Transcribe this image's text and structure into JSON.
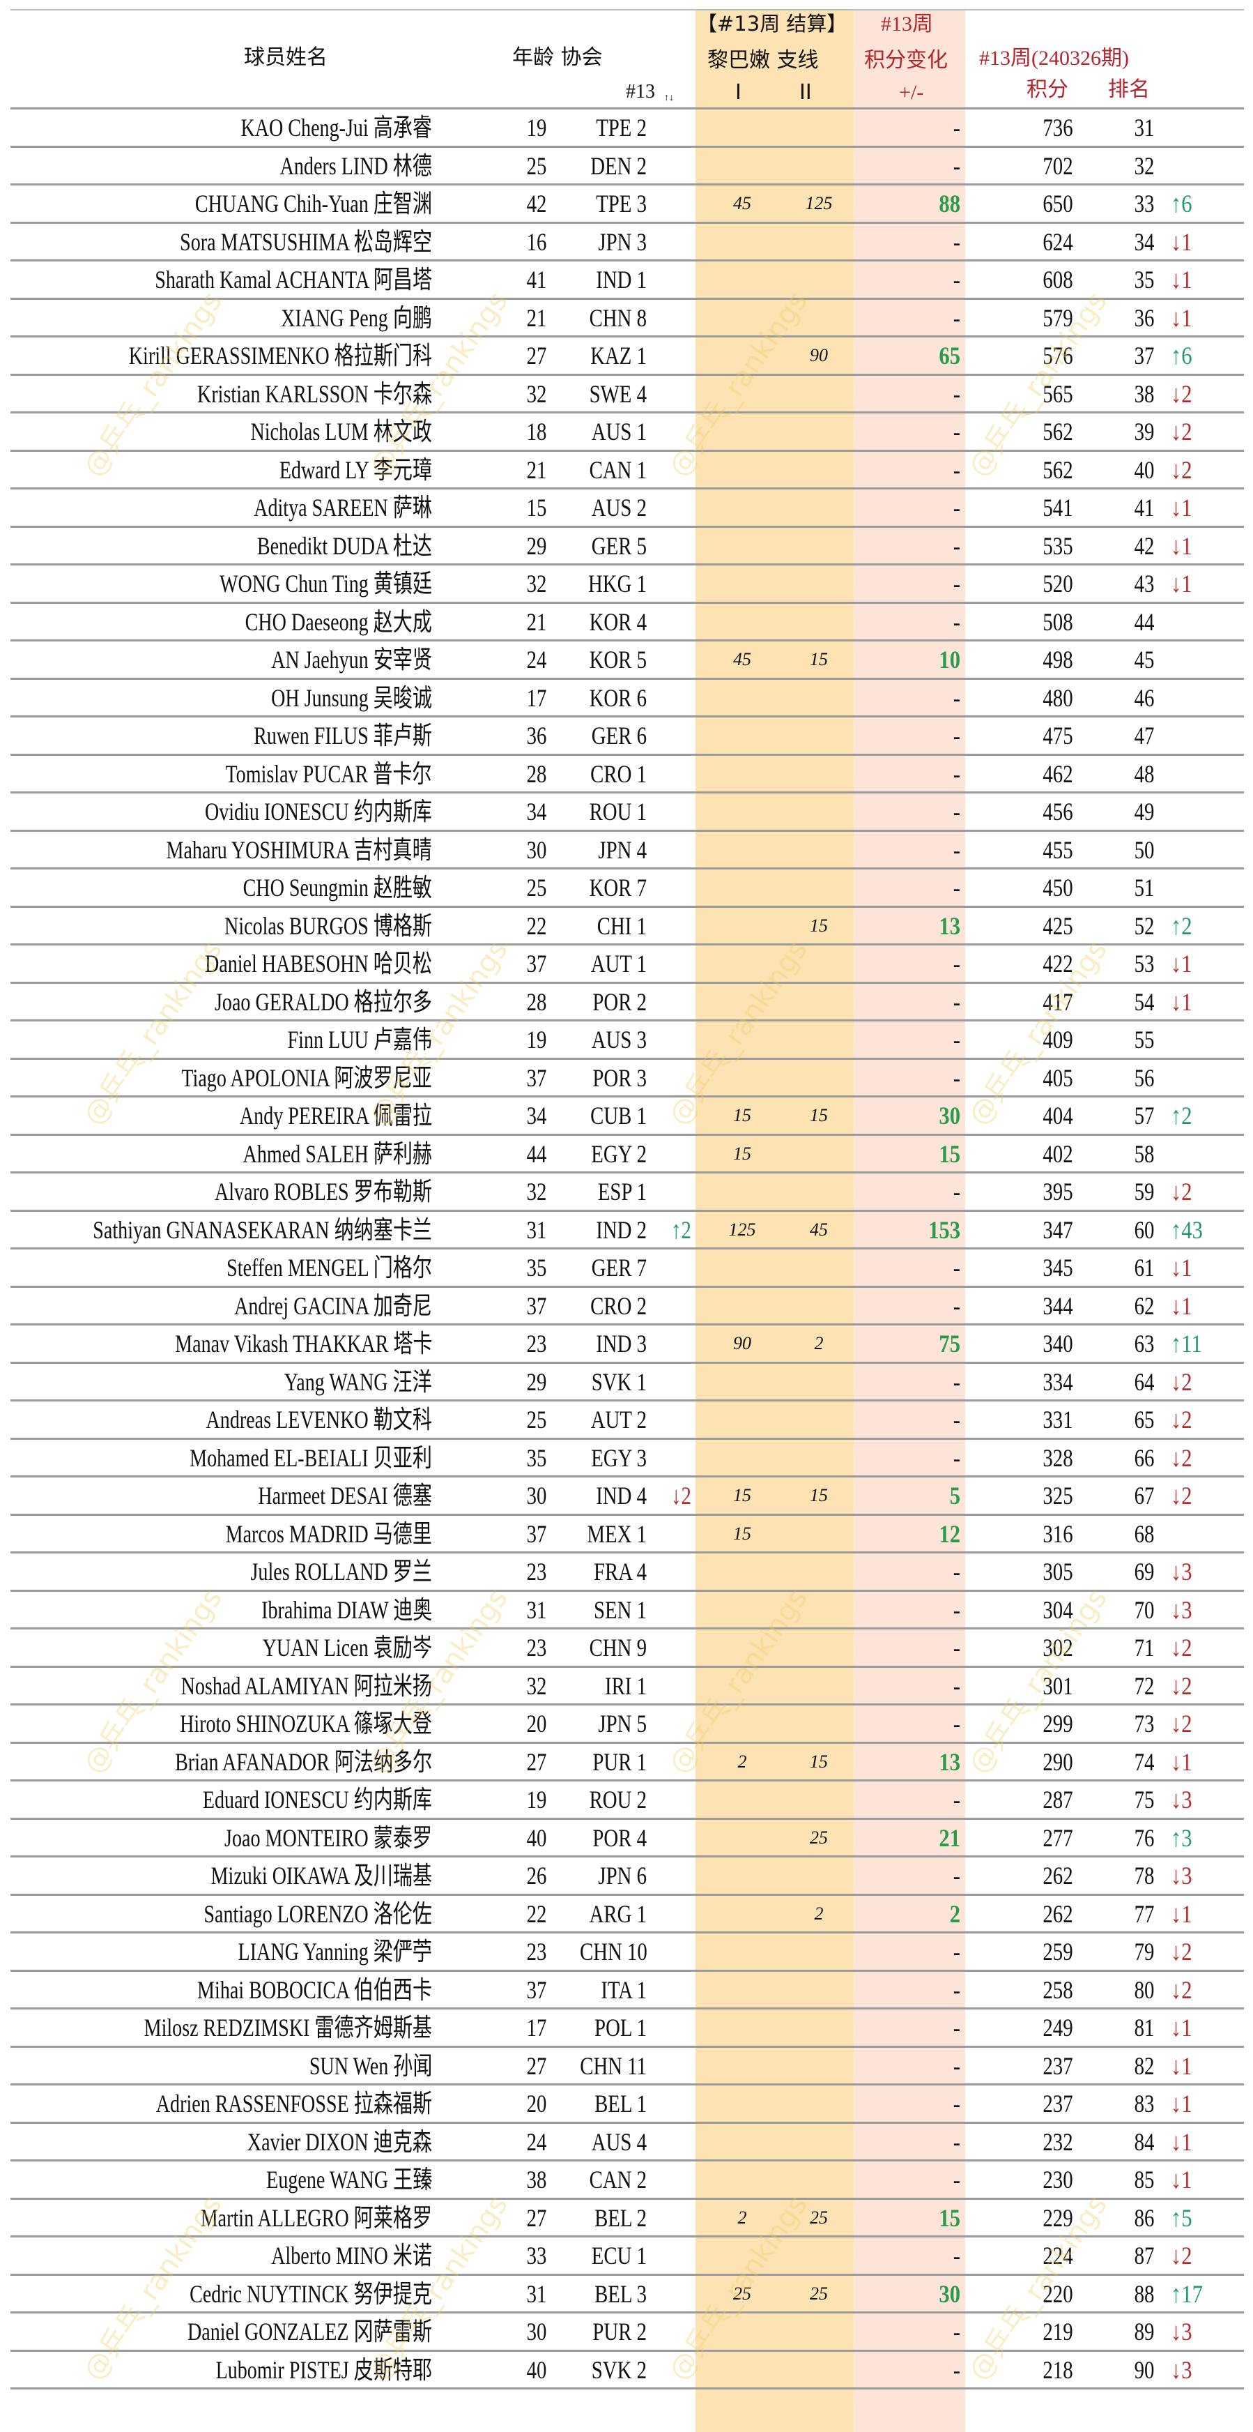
{
  "header": {
    "name": "球员姓名",
    "age_assoc": "年龄 协会",
    "prev_rank": "#13",
    "sort_icon": "↑↓",
    "settle_title": "【#13周 结算】",
    "settle_sub": "黎巴嫩 支线",
    "col_i": "I",
    "col_ii": "II",
    "change_title": "#13周",
    "change_sub": "积分变化",
    "change_unit": "+/-",
    "period": "#13周(240326期)",
    "points": "积分",
    "rank": "排名"
  },
  "watermark": "@乒乓_rankings",
  "colors": {
    "orange_band": "#fde2b3",
    "pink_band": "#fce4d8",
    "up": "#22996b",
    "down": "#b22a2a",
    "header_red": "#b3242b",
    "delta_green": "#2a9a4e"
  },
  "rows": [
    {
      "name": "KAO Cheng-Jui 高承睿",
      "age": "19",
      "assoc": "TPE 2",
      "prank": "",
      "i": "",
      "ii": "",
      "delta": "-",
      "points": "736",
      "rank": "31",
      "chg": ""
    },
    {
      "name": "Anders LIND 林德",
      "age": "25",
      "assoc": "DEN 2",
      "prank": "",
      "i": "",
      "ii": "",
      "delta": "-",
      "points": "702",
      "rank": "32",
      "chg": ""
    },
    {
      "name": "CHUANG Chih-Yuan 庄智渊",
      "age": "42",
      "assoc": "TPE 3",
      "prank": "",
      "i": "45",
      "ii": "125",
      "delta": "88",
      "points": "650",
      "rank": "33",
      "chg": "↑6"
    },
    {
      "name": "Sora MATSUSHIMA 松岛辉空",
      "age": "16",
      "assoc": "JPN 3",
      "prank": "",
      "i": "",
      "ii": "",
      "delta": "-",
      "points": "624",
      "rank": "34",
      "chg": "↓1"
    },
    {
      "name": "Sharath Kamal ACHANTA 阿昌塔",
      "age": "41",
      "assoc": "IND 1",
      "prank": "",
      "i": "",
      "ii": "",
      "delta": "-",
      "points": "608",
      "rank": "35",
      "chg": "↓1"
    },
    {
      "name": "XIANG Peng 向鹏",
      "age": "21",
      "assoc": "CHN 8",
      "prank": "",
      "i": "",
      "ii": "",
      "delta": "-",
      "points": "579",
      "rank": "36",
      "chg": "↓1"
    },
    {
      "name": "Kirill GERASSIMENKO 格拉斯门科",
      "age": "27",
      "assoc": "KAZ 1",
      "prank": "",
      "i": "",
      "ii": "90",
      "delta": "65",
      "points": "576",
      "rank": "37",
      "chg": "↑6"
    },
    {
      "name": "Kristian KARLSSON 卡尔森",
      "age": "32",
      "assoc": "SWE 4",
      "prank": "",
      "i": "",
      "ii": "",
      "delta": "-",
      "points": "565",
      "rank": "38",
      "chg": "↓2"
    },
    {
      "name": "Nicholas LUM 林文政",
      "age": "18",
      "assoc": "AUS 1",
      "prank": "",
      "i": "",
      "ii": "",
      "delta": "-",
      "points": "562",
      "rank": "39",
      "chg": "↓2"
    },
    {
      "name": "Edward LY 李元璋",
      "age": "21",
      "assoc": "CAN 1",
      "prank": "",
      "i": "",
      "ii": "",
      "delta": "-",
      "points": "562",
      "rank": "40",
      "chg": "↓2"
    },
    {
      "name": "Aditya SAREEN 萨琳",
      "age": "15",
      "assoc": "AUS 2",
      "prank": "",
      "i": "",
      "ii": "",
      "delta": "-",
      "points": "541",
      "rank": "41",
      "chg": "↓1"
    },
    {
      "name": "Benedikt DUDA 杜达",
      "age": "29",
      "assoc": "GER 5",
      "prank": "",
      "i": "",
      "ii": "",
      "delta": "-",
      "points": "535",
      "rank": "42",
      "chg": "↓1"
    },
    {
      "name": "WONG Chun Ting 黄镇廷",
      "age": "32",
      "assoc": "HKG 1",
      "prank": "",
      "i": "",
      "ii": "",
      "delta": "-",
      "points": "520",
      "rank": "43",
      "chg": "↓1"
    },
    {
      "name": "CHO Daeseong 赵大成",
      "age": "21",
      "assoc": "KOR 4",
      "prank": "",
      "i": "",
      "ii": "",
      "delta": "-",
      "points": "508",
      "rank": "44",
      "chg": ""
    },
    {
      "name": "AN Jaehyun 安宰贤",
      "age": "24",
      "assoc": "KOR 5",
      "prank": "",
      "i": "45",
      "ii": "15",
      "delta": "10",
      "points": "498",
      "rank": "45",
      "chg": ""
    },
    {
      "name": "OH Junsung 吴晙诚",
      "age": "17",
      "assoc": "KOR 6",
      "prank": "",
      "i": "",
      "ii": "",
      "delta": "-",
      "points": "480",
      "rank": "46",
      "chg": ""
    },
    {
      "name": "Ruwen FILUS 菲卢斯",
      "age": "36",
      "assoc": "GER 6",
      "prank": "",
      "i": "",
      "ii": "",
      "delta": "-",
      "points": "475",
      "rank": "47",
      "chg": ""
    },
    {
      "name": "Tomislav PUCAR 普卡尔",
      "age": "28",
      "assoc": "CRO 1",
      "prank": "",
      "i": "",
      "ii": "",
      "delta": "-",
      "points": "462",
      "rank": "48",
      "chg": ""
    },
    {
      "name": "Ovidiu IONESCU 约内斯库",
      "age": "34",
      "assoc": "ROU 1",
      "prank": "",
      "i": "",
      "ii": "",
      "delta": "-",
      "points": "456",
      "rank": "49",
      "chg": ""
    },
    {
      "name": "Maharu YOSHIMURA 吉村真晴",
      "age": "30",
      "assoc": "JPN 4",
      "prank": "",
      "i": "",
      "ii": "",
      "delta": "-",
      "points": "455",
      "rank": "50",
      "chg": ""
    },
    {
      "name": "CHO Seungmin 赵胜敏",
      "age": "25",
      "assoc": "KOR 7",
      "prank": "",
      "i": "",
      "ii": "",
      "delta": "-",
      "points": "450",
      "rank": "51",
      "chg": ""
    },
    {
      "name": "Nicolas BURGOS 博格斯",
      "age": "22",
      "assoc": "CHI 1",
      "prank": "",
      "i": "",
      "ii": "15",
      "delta": "13",
      "points": "425",
      "rank": "52",
      "chg": "↑2"
    },
    {
      "name": "Daniel HABESOHN 哈贝松",
      "age": "37",
      "assoc": "AUT 1",
      "prank": "",
      "i": "",
      "ii": "",
      "delta": "-",
      "points": "422",
      "rank": "53",
      "chg": "↓1"
    },
    {
      "name": "Joao GERALDO 格拉尔多",
      "age": "28",
      "assoc": "POR 2",
      "prank": "",
      "i": "",
      "ii": "",
      "delta": "-",
      "points": "417",
      "rank": "54",
      "chg": "↓1"
    },
    {
      "name": "Finn LUU 卢嘉伟",
      "age": "19",
      "assoc": "AUS 3",
      "prank": "",
      "i": "",
      "ii": "",
      "delta": "-",
      "points": "409",
      "rank": "55",
      "chg": ""
    },
    {
      "name": "Tiago APOLONIA 阿波罗尼亚",
      "age": "37",
      "assoc": "POR 3",
      "prank": "",
      "i": "",
      "ii": "",
      "delta": "-",
      "points": "405",
      "rank": "56",
      "chg": ""
    },
    {
      "name": "Andy PEREIRA 佩雷拉",
      "age": "34",
      "assoc": "CUB 1",
      "prank": "",
      "i": "15",
      "ii": "15",
      "delta": "30",
      "points": "404",
      "rank": "57",
      "chg": "↑2"
    },
    {
      "name": "Ahmed SALEH 萨利赫",
      "age": "44",
      "assoc": "EGY 2",
      "prank": "",
      "i": "15",
      "ii": "",
      "delta": "15",
      "points": "402",
      "rank": "58",
      "chg": ""
    },
    {
      "name": "Alvaro ROBLES 罗布勒斯",
      "age": "32",
      "assoc": "ESP 1",
      "prank": "",
      "i": "",
      "ii": "",
      "delta": "-",
      "points": "395",
      "rank": "59",
      "chg": "↓2"
    },
    {
      "name": "Sathiyan GNANASEKARAN 纳纳塞卡兰",
      "age": "31",
      "assoc": "IND 2",
      "prank": "↑2",
      "i": "125",
      "ii": "45",
      "delta": "153",
      "points": "347",
      "rank": "60",
      "chg": "↑43"
    },
    {
      "name": "Steffen MENGEL 门格尔",
      "age": "35",
      "assoc": "GER 7",
      "prank": "",
      "i": "",
      "ii": "",
      "delta": "-",
      "points": "345",
      "rank": "61",
      "chg": "↓1"
    },
    {
      "name": "Andrej GACINA 加奇尼",
      "age": "37",
      "assoc": "CRO 2",
      "prank": "",
      "i": "",
      "ii": "",
      "delta": "-",
      "points": "344",
      "rank": "62",
      "chg": "↓1"
    },
    {
      "name": "Manav Vikash THAKKAR 塔卡",
      "age": "23",
      "assoc": "IND 3",
      "prank": "",
      "i": "90",
      "ii": "2",
      "delta": "75",
      "points": "340",
      "rank": "63",
      "chg": "↑11"
    },
    {
      "name": "Yang WANG 汪洋",
      "age": "29",
      "assoc": "SVK 1",
      "prank": "",
      "i": "",
      "ii": "",
      "delta": "-",
      "points": "334",
      "rank": "64",
      "chg": "↓2"
    },
    {
      "name": "Andreas LEVENKO 勒文科",
      "age": "25",
      "assoc": "AUT 2",
      "prank": "",
      "i": "",
      "ii": "",
      "delta": "-",
      "points": "331",
      "rank": "65",
      "chg": "↓2"
    },
    {
      "name": "Mohamed EL-BEIALI 贝亚利",
      "age": "35",
      "assoc": "EGY 3",
      "prank": "",
      "i": "",
      "ii": "",
      "delta": "-",
      "points": "328",
      "rank": "66",
      "chg": "↓2"
    },
    {
      "name": "Harmeet DESAI 德塞",
      "age": "30",
      "assoc": "IND 4",
      "prank": "↓2",
      "i": "15",
      "ii": "15",
      "delta": "5",
      "points": "325",
      "rank": "67",
      "chg": "↓2"
    },
    {
      "name": "Marcos MADRID 马德里",
      "age": "37",
      "assoc": "MEX 1",
      "prank": "",
      "i": "15",
      "ii": "",
      "delta": "12",
      "points": "316",
      "rank": "68",
      "chg": ""
    },
    {
      "name": "Jules ROLLAND 罗兰",
      "age": "23",
      "assoc": "FRA 4",
      "prank": "",
      "i": "",
      "ii": "",
      "delta": "-",
      "points": "305",
      "rank": "69",
      "chg": "↓3"
    },
    {
      "name": "Ibrahima DIAW 迪奥",
      "age": "31",
      "assoc": "SEN 1",
      "prank": "",
      "i": "",
      "ii": "",
      "delta": "-",
      "points": "304",
      "rank": "70",
      "chg": "↓3"
    },
    {
      "name": "YUAN Licen 袁励岑",
      "age": "23",
      "assoc": "CHN 9",
      "prank": "",
      "i": "",
      "ii": "",
      "delta": "-",
      "points": "302",
      "rank": "71",
      "chg": "↓2"
    },
    {
      "name": "Noshad ALAMIYAN 阿拉米扬",
      "age": "32",
      "assoc": "IRI 1",
      "prank": "",
      "i": "",
      "ii": "",
      "delta": "-",
      "points": "301",
      "rank": "72",
      "chg": "↓2"
    },
    {
      "name": "Hiroto SHINOZUKA 篠塚大登",
      "age": "20",
      "assoc": "JPN 5",
      "prank": "",
      "i": "",
      "ii": "",
      "delta": "-",
      "points": "299",
      "rank": "73",
      "chg": "↓2"
    },
    {
      "name": "Brian AFANADOR 阿法纳多尔",
      "age": "27",
      "assoc": "PUR 1",
      "prank": "",
      "i": "2",
      "ii": "15",
      "delta": "13",
      "points": "290",
      "rank": "74",
      "chg": "↓1"
    },
    {
      "name": "Eduard IONESCU 约内斯库",
      "age": "19",
      "assoc": "ROU 2",
      "prank": "",
      "i": "",
      "ii": "",
      "delta": "-",
      "points": "287",
      "rank": "75",
      "chg": "↓3"
    },
    {
      "name": "Joao MONTEIRO 蒙泰罗",
      "age": "40",
      "assoc": "POR 4",
      "prank": "",
      "i": "",
      "ii": "25",
      "delta": "21",
      "points": "277",
      "rank": "76",
      "chg": "↑3"
    },
    {
      "name": "Mizuki OIKAWA 及川瑞基",
      "age": "26",
      "assoc": "JPN 6",
      "prank": "",
      "i": "",
      "ii": "",
      "delta": "-",
      "points": "262",
      "rank": "78",
      "chg": "↓3"
    },
    {
      "name": "Santiago LORENZO 洛伦佐",
      "age": "22",
      "assoc": "ARG 1",
      "prank": "",
      "i": "",
      "ii": "2",
      "delta": "2",
      "points": "262",
      "rank": "77",
      "chg": "↓1"
    },
    {
      "name": "LIANG Yanning 梁俨苧",
      "age": "23",
      "assoc": "CHN 10",
      "prank": "",
      "i": "",
      "ii": "",
      "delta": "-",
      "points": "259",
      "rank": "79",
      "chg": "↓2"
    },
    {
      "name": "Mihai BOBOCICA 伯伯西卡",
      "age": "37",
      "assoc": "ITA 1",
      "prank": "",
      "i": "",
      "ii": "",
      "delta": "-",
      "points": "258",
      "rank": "80",
      "chg": "↓2"
    },
    {
      "name": "Milosz REDZIMSKI 雷德齐姆斯基",
      "age": "17",
      "assoc": "POL 1",
      "prank": "",
      "i": "",
      "ii": "",
      "delta": "-",
      "points": "249",
      "rank": "81",
      "chg": "↓1"
    },
    {
      "name": "SUN Wen 孙闻",
      "age": "27",
      "assoc": "CHN 11",
      "prank": "",
      "i": "",
      "ii": "",
      "delta": "-",
      "points": "237",
      "rank": "82",
      "chg": "↓1"
    },
    {
      "name": "Adrien RASSENFOSSE 拉森福斯",
      "age": "20",
      "assoc": "BEL 1",
      "prank": "",
      "i": "",
      "ii": "",
      "delta": "-",
      "points": "237",
      "rank": "83",
      "chg": "↓1"
    },
    {
      "name": "Xavier DIXON 迪克森",
      "age": "24",
      "assoc": "AUS 4",
      "prank": "",
      "i": "",
      "ii": "",
      "delta": "-",
      "points": "232",
      "rank": "84",
      "chg": "↓1"
    },
    {
      "name": "Eugene WANG 王臻",
      "age": "38",
      "assoc": "CAN 2",
      "prank": "",
      "i": "",
      "ii": "",
      "delta": "-",
      "points": "230",
      "rank": "85",
      "chg": "↓1"
    },
    {
      "name": "Martin ALLEGRO 阿莱格罗",
      "age": "27",
      "assoc": "BEL 2",
      "prank": "",
      "i": "2",
      "ii": "25",
      "delta": "15",
      "points": "229",
      "rank": "86",
      "chg": "↑5"
    },
    {
      "name": "Alberto MINO 米诺",
      "age": "33",
      "assoc": "ECU 1",
      "prank": "",
      "i": "",
      "ii": "",
      "delta": "-",
      "points": "224",
      "rank": "87",
      "chg": "↓2"
    },
    {
      "name": "Cedric NUYTINCK 努伊提克",
      "age": "31",
      "assoc": "BEL 3",
      "prank": "",
      "i": "25",
      "ii": "25",
      "delta": "30",
      "points": "220",
      "rank": "88",
      "chg": "↑17"
    },
    {
      "name": "Daniel GONZALEZ 冈萨雷斯",
      "age": "30",
      "assoc": "PUR 2",
      "prank": "",
      "i": "",
      "ii": "",
      "delta": "-",
      "points": "219",
      "rank": "89",
      "chg": "↓3"
    },
    {
      "name": "Lubomir PISTEJ 皮斯特耶",
      "age": "40",
      "assoc": "SVK 2",
      "prank": "",
      "i": "",
      "ii": "",
      "delta": "-",
      "points": "218",
      "rank": "90",
      "chg": "↓3"
    }
  ]
}
